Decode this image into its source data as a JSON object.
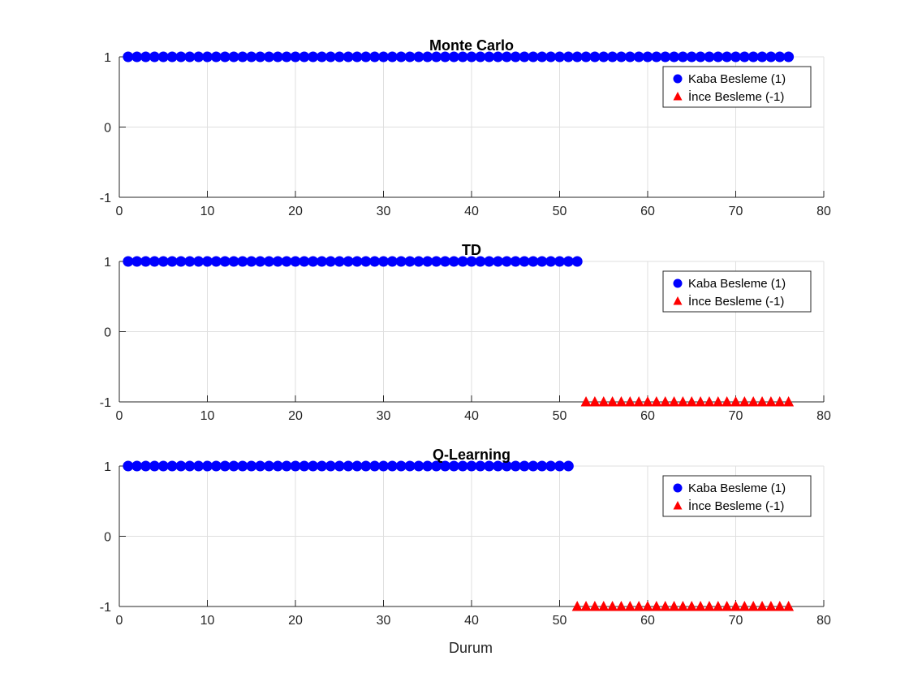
{
  "chart_data": [
    {
      "type": "scatter",
      "title": "Monte Carlo",
      "xlabel": "",
      "ylabel": "",
      "xlim": [
        0,
        80
      ],
      "ylim": [
        -1,
        1
      ],
      "xticks": [
        "0",
        "10",
        "20",
        "30",
        "40",
        "50",
        "60",
        "70",
        "80"
      ],
      "yticks": [
        "-1",
        "0",
        "1"
      ],
      "grid": true,
      "legend_position": "top-right",
      "series": [
        {
          "name": "Kaba Besleme (1)",
          "marker": "circle",
          "color": "#0000ff",
          "x_from": 1,
          "x_to": 76,
          "y": 1
        },
        {
          "name": "İnce Besleme (-1)",
          "marker": "triangle",
          "color": "#ff0000",
          "x_from": null,
          "x_to": null,
          "y": -1
        }
      ]
    },
    {
      "type": "scatter",
      "title": "TD",
      "xlabel": "",
      "ylabel": "",
      "xlim": [
        0,
        80
      ],
      "ylim": [
        -1,
        1
      ],
      "xticks": [
        "0",
        "10",
        "20",
        "30",
        "40",
        "50",
        "60",
        "70",
        "80"
      ],
      "yticks": [
        "-1",
        "0",
        "1"
      ],
      "grid": true,
      "legend_position": "top-right",
      "series": [
        {
          "name": "Kaba Besleme (1)",
          "marker": "circle",
          "color": "#0000ff",
          "x_from": 1,
          "x_to": 52,
          "y": 1
        },
        {
          "name": "İnce Besleme (-1)",
          "marker": "triangle",
          "color": "#ff0000",
          "x_from": 53,
          "x_to": 76,
          "y": -1
        }
      ]
    },
    {
      "type": "scatter",
      "title": "Q-Learning",
      "xlabel": "Durum",
      "ylabel": "",
      "xlim": [
        0,
        80
      ],
      "ylim": [
        -1,
        1
      ],
      "xticks": [
        "0",
        "10",
        "20",
        "30",
        "40",
        "50",
        "60",
        "70",
        "80"
      ],
      "yticks": [
        "-1",
        "0",
        "1"
      ],
      "grid": true,
      "legend_position": "top-right",
      "series": [
        {
          "name": "Kaba Besleme (1)",
          "marker": "circle",
          "color": "#0000ff",
          "x_from": 1,
          "x_to": 51,
          "y": 1
        },
        {
          "name": "İnce Besleme (-1)",
          "marker": "triangle",
          "color": "#ff0000",
          "x_from": 52,
          "x_to": 76,
          "y": -1
        }
      ]
    }
  ]
}
